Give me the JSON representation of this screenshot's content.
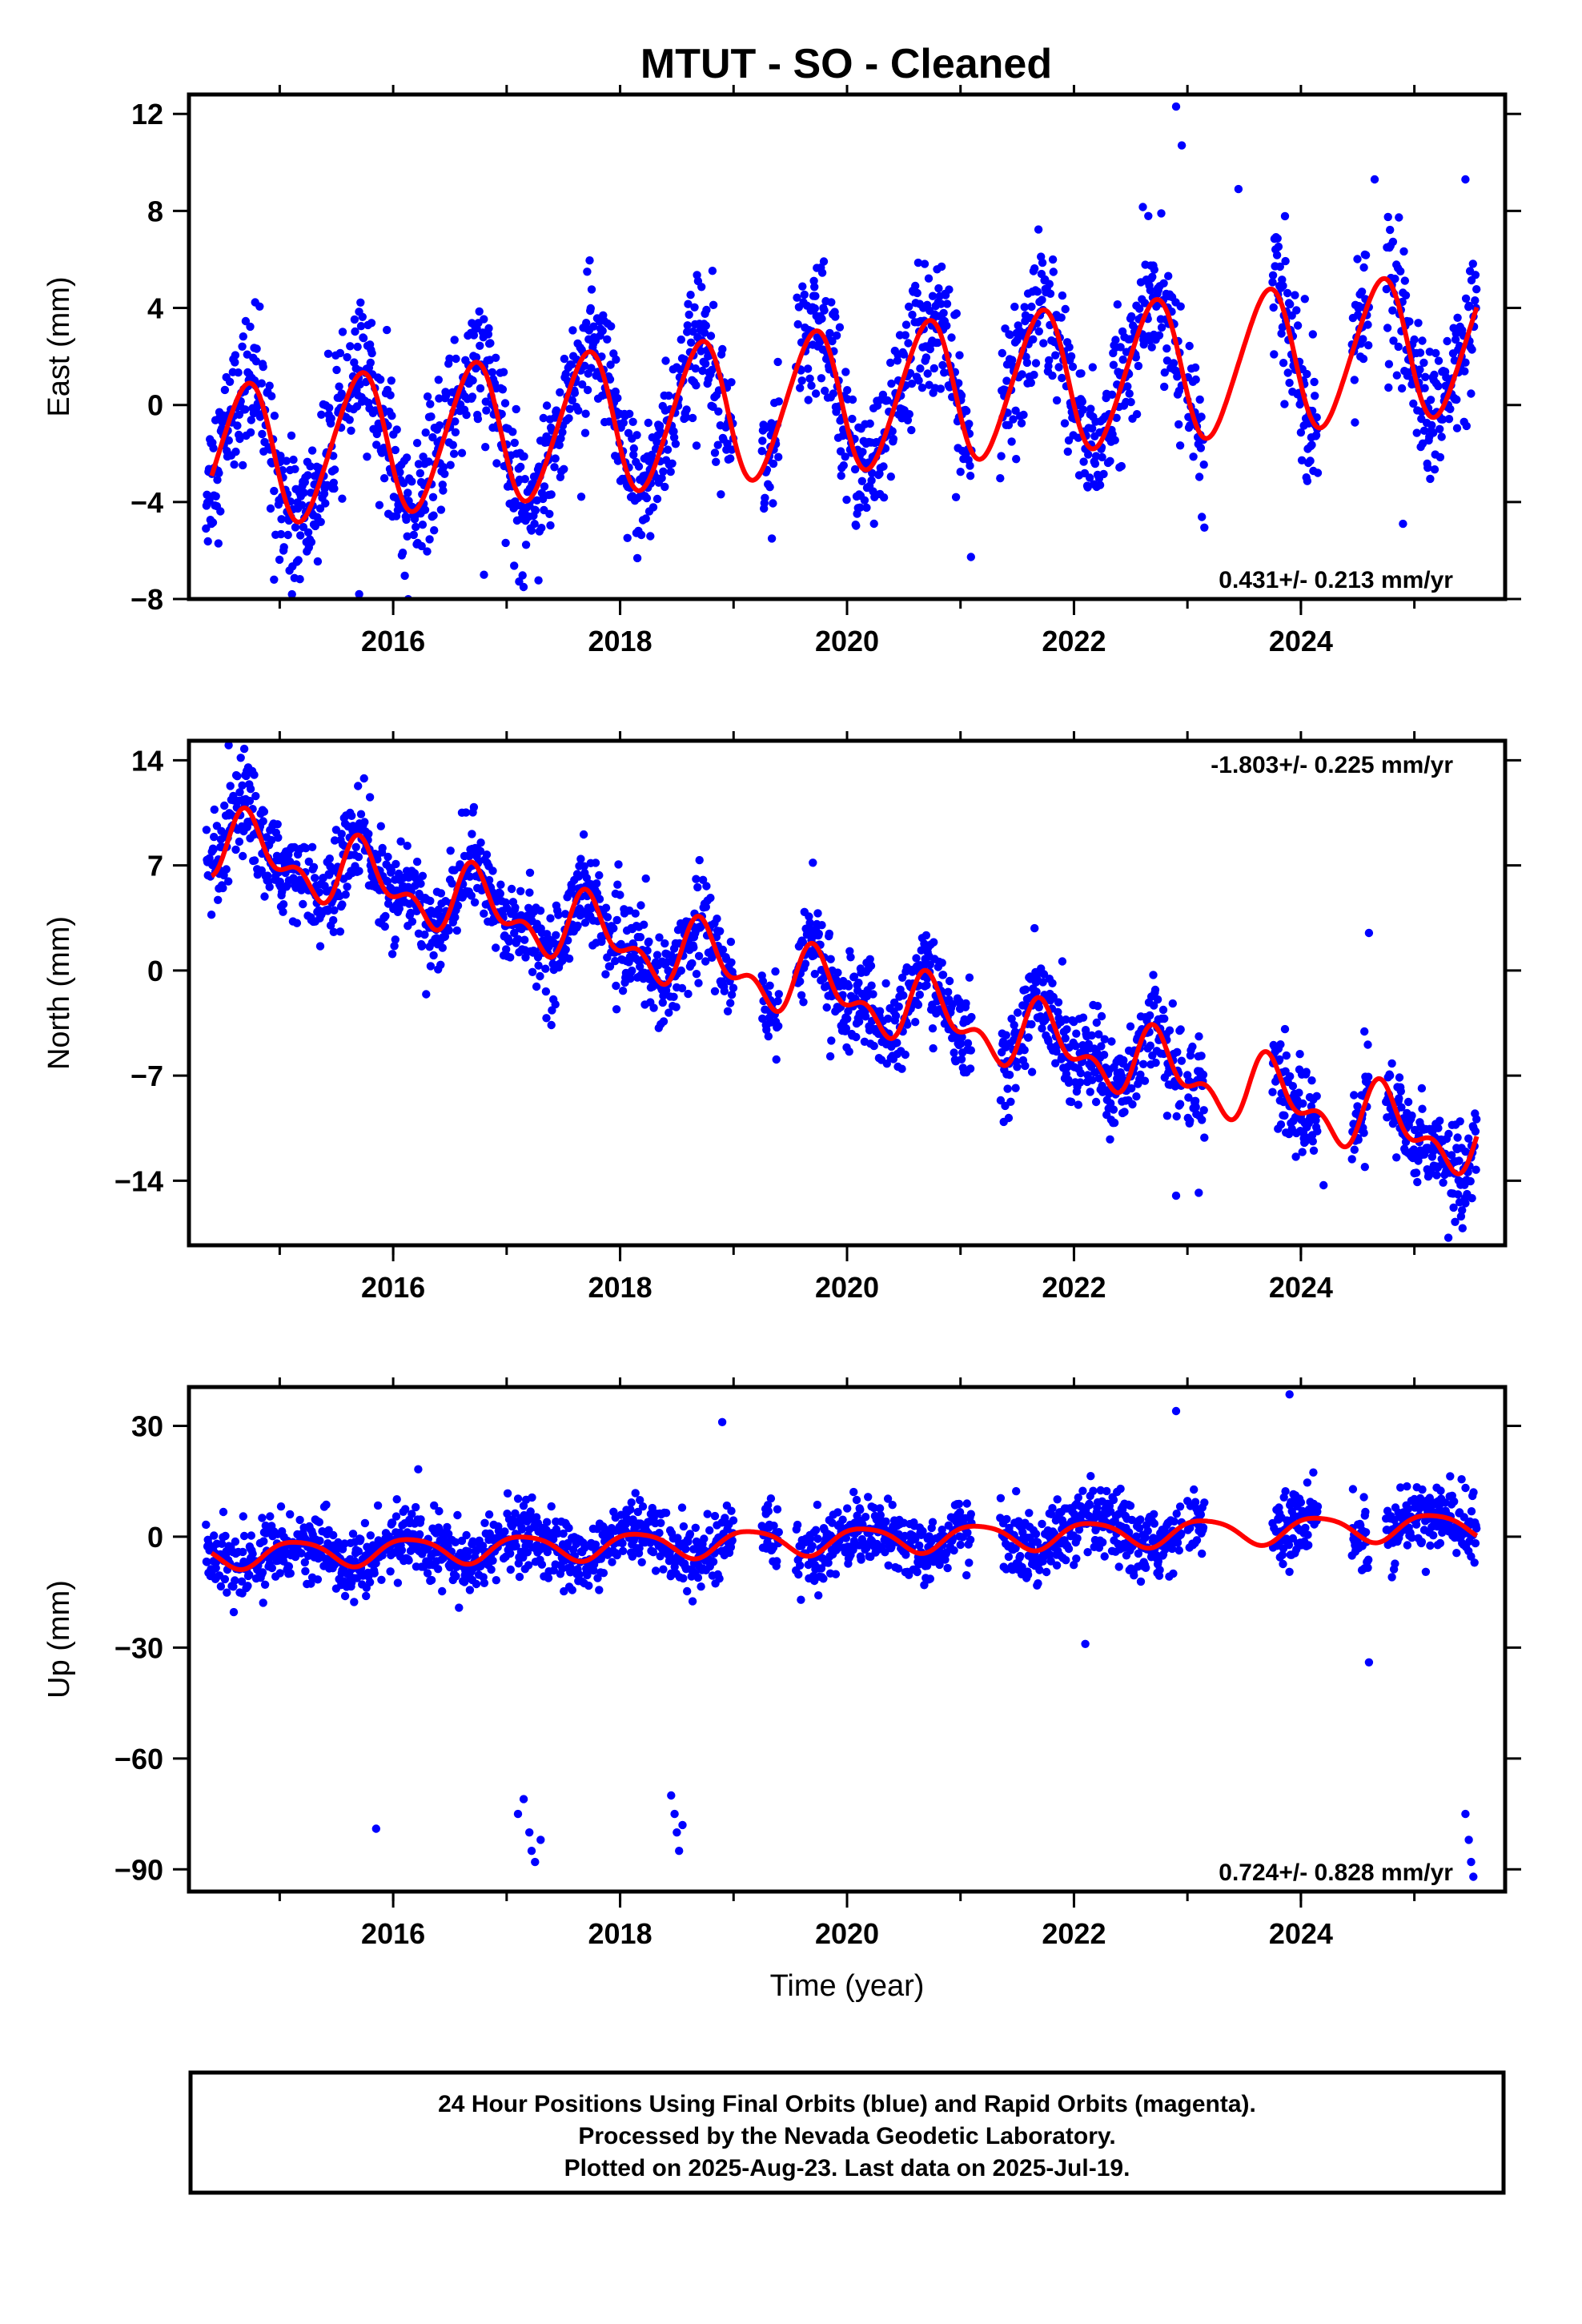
{
  "title": "MTUT  - SO - Cleaned",
  "footer": {
    "lines": [
      "24 Hour Positions Using Final Orbits (blue) and Rapid Orbits (magenta).",
      "Processed by the Nevada Geodetic Laboratory.",
      "Plotted on 2025-Aug-23. Last data on 2025-Jul-19."
    ]
  },
  "colors": {
    "data_points": "#0000ff",
    "model_curve": "#ff0000",
    "axes": "#000000"
  },
  "chart_data": [
    {
      "type": "scatter",
      "component": "east",
      "ylabel": "East (mm)",
      "xlabel": "",
      "xlim": [
        2014.2,
        2025.8
      ],
      "ylim": [
        -8,
        12.8
      ],
      "xticks": [
        2016,
        2018,
        2020,
        2022,
        2024
      ],
      "xtick_labels": [
        "2016",
        "2018",
        "2020",
        "2022",
        "2024"
      ],
      "yticks": [
        -8,
        -4,
        0,
        4,
        8,
        12
      ],
      "ytick_labels": [
        "−8",
        "−4",
        "0",
        "4",
        "8",
        "12"
      ],
      "rate_label": "0.431+/- 0.213 mm/yr",
      "rate_position": "bottom-right",
      "model": {
        "offset": -2.2,
        "rate": 0.431,
        "ref_year": 2014.4,
        "annual_amplitude": 2.9,
        "annual_phase_year": 0.45,
        "semiannual_amplitude": 0.3,
        "semiannual_phase_year": 0.2
      },
      "data_spans": [
        [
          2014.35,
          2019.0
        ],
        [
          2019.25,
          2019.4
        ],
        [
          2019.55,
          2021.1
        ],
        [
          2021.35,
          2022.95
        ],
        [
          2023.0,
          2023.15
        ],
        [
          2023.75,
          2024.15
        ],
        [
          2024.45,
          2024.6
        ],
        [
          2024.75,
          2025.55
        ]
      ],
      "scatter_sigma": 1.4,
      "outliers": [
        [
          2022.9,
          12.3
        ],
        [
          2022.95,
          10.7
        ],
        [
          2023.45,
          8.9
        ],
        [
          2024.65,
          9.3
        ],
        [
          2025.45,
          9.3
        ],
        [
          2015.7,
          -7.8
        ],
        [
          2014.95,
          -7.2
        ],
        [
          2016.8,
          -7.0
        ],
        [
          2024.9,
          -4.9
        ]
      ]
    },
    {
      "type": "scatter",
      "component": "north",
      "ylabel": "North (mm)",
      "xlabel": "",
      "xlim": [
        2014.2,
        2025.8
      ],
      "ylim": [
        -18.3,
        15.3
      ],
      "xticks": [
        2016,
        2018,
        2020,
        2022,
        2024
      ],
      "xtick_labels": [
        "2016",
        "2018",
        "2020",
        "2022",
        "2024"
      ],
      "yticks": [
        -14,
        -7,
        0,
        7,
        14
      ],
      "ytick_labels": [
        "−14",
        "−7",
        "0",
        "7",
        "14"
      ],
      "rate_label": "-1.803+/- 0.225 mm/yr",
      "rate_position": "top-right",
      "model": {
        "offset": 8.5,
        "rate": -1.803,
        "ref_year": 2014.4,
        "annual_amplitude": 1.8,
        "annual_phase_year": 0.5,
        "semiannual_amplitude": 1.2,
        "semiannual_phase_year": 0.05
      },
      "data_spans": [
        [
          2014.35,
          2019.0
        ],
        [
          2019.25,
          2019.4
        ],
        [
          2019.55,
          2021.1
        ],
        [
          2021.35,
          2022.95
        ],
        [
          2023.0,
          2023.15
        ],
        [
          2023.75,
          2024.15
        ],
        [
          2024.45,
          2024.6
        ],
        [
          2024.75,
          2025.55
        ]
      ],
      "scatter_sigma": 1.5,
      "outliers": [
        [
          2014.55,
          15.0
        ],
        [
          2024.6,
          2.5
        ],
        [
          2025.3,
          -17.8
        ],
        [
          2022.9,
          -15.0
        ],
        [
          2023.1,
          -14.8
        ],
        [
          2024.2,
          -14.3
        ],
        [
          2025.45,
          -15.5
        ]
      ]
    },
    {
      "type": "scatter",
      "component": "up",
      "ylabel": "Up (mm)",
      "xlabel": "Time (year)",
      "xlim": [
        2014.2,
        2025.8
      ],
      "ylim": [
        -96,
        40.5
      ],
      "xticks": [
        2016,
        2018,
        2020,
        2022,
        2024
      ],
      "xtick_labels": [
        "2016",
        "2018",
        "2020",
        "2022",
        "2024"
      ],
      "yticks": [
        -90,
        -60,
        -30,
        0,
        30
      ],
      "ytick_labels": [
        "−90",
        "−60",
        "−30",
        "0",
        "30"
      ],
      "rate_label": "0.724+/- 0.828 mm/yr",
      "rate_position": "bottom-right",
      "model": {
        "offset": -5.0,
        "rate": 0.724,
        "ref_year": 2014.4,
        "annual_amplitude": 3.5,
        "annual_phase_year": 0.9,
        "semiannual_amplitude": 0.6,
        "semiannual_phase_year": 0.3
      },
      "data_spans": [
        [
          2014.35,
          2019.0
        ],
        [
          2019.25,
          2019.4
        ],
        [
          2019.55,
          2021.1
        ],
        [
          2021.35,
          2022.95
        ],
        [
          2023.0,
          2023.15
        ],
        [
          2023.75,
          2024.15
        ],
        [
          2024.45,
          2024.6
        ],
        [
          2024.75,
          2025.55
        ]
      ],
      "scatter_sigma": 4.5,
      "outliers": [
        [
          2015.85,
          -79.0
        ],
        [
          2017.1,
          -75.0
        ],
        [
          2017.15,
          -71.0
        ],
        [
          2017.2,
          -80.0
        ],
        [
          2017.22,
          -85.0
        ],
        [
          2017.25,
          -88.0
        ],
        [
          2017.3,
          -82.0
        ],
        [
          2018.45,
          -70.0
        ],
        [
          2018.48,
          -75.0
        ],
        [
          2018.5,
          -80.0
        ],
        [
          2018.52,
          -85.0
        ],
        [
          2018.55,
          -78.0
        ],
        [
          2025.45,
          -75.0
        ],
        [
          2025.48,
          -82.0
        ],
        [
          2025.5,
          -88.0
        ],
        [
          2025.52,
          -92.0
        ],
        [
          2024.6,
          -34.0
        ],
        [
          2022.1,
          -29.0
        ],
        [
          2023.9,
          38.5
        ],
        [
          2018.9,
          31.0
        ],
        [
          2022.9,
          34.0
        ]
      ]
    }
  ]
}
